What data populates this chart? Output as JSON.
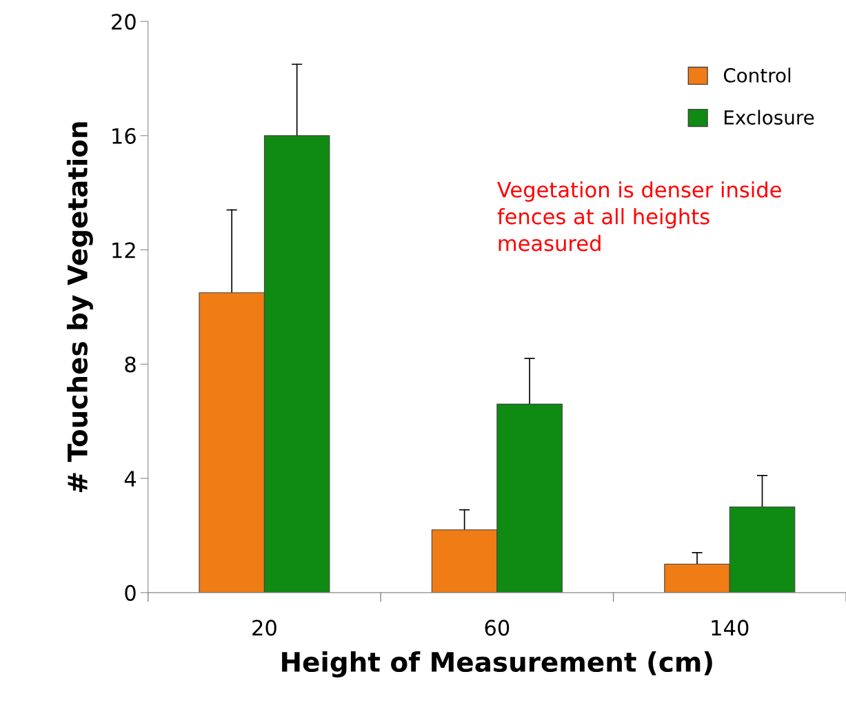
{
  "chart_data": {
    "type": "bar",
    "xlabel": "Height of Measurement (cm)",
    "ylabel": "# Touches by Vegetation",
    "categories": [
      "20",
      "60",
      "140"
    ],
    "series": [
      {
        "name": "Control",
        "color": "#f07c16",
        "values": [
          10.5,
          2.2,
          1.0
        ],
        "errors": [
          [
            10.5,
            13.4
          ],
          [
            2.2,
            2.9
          ],
          [
            1.0,
            1.4
          ]
        ]
      },
      {
        "name": "Exclosure",
        "color": "#0f8a12",
        "values": [
          16.0,
          6.6,
          3.0
        ],
        "errors": [
          [
            16.0,
            18.5
          ],
          [
            6.6,
            8.2
          ],
          [
            3.0,
            4.1
          ]
        ]
      }
    ],
    "ylim": [
      0,
      20
    ],
    "yticks": [
      0,
      4,
      8,
      12,
      16,
      20
    ],
    "grid": false,
    "legend": "top right",
    "annotations": [
      "Vegetation is denser inside fences at all heights measured"
    ]
  }
}
